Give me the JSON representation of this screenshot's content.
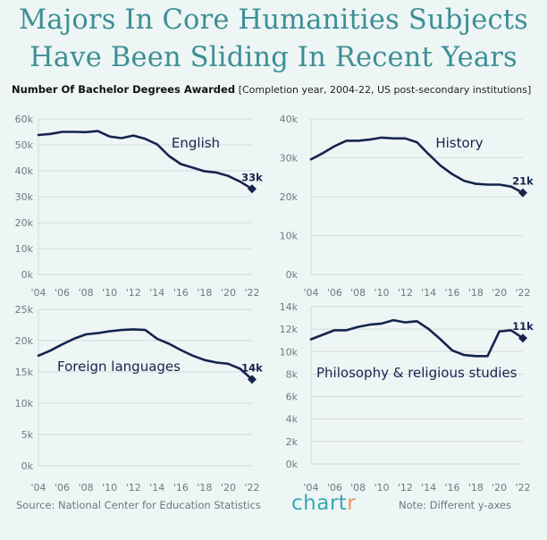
{
  "header": {
    "title_line1": "Majors In Core Humanities Subjects",
    "title_line2": "Have Been Sliding In Recent Years",
    "subtitle_bold": "Number Of Bachelor Degrees Awarded",
    "subtitle_note": "[Completion year, 2004-22, US post-secondary institutions]"
  },
  "footer": {
    "source": "Source: National Center for Education Statistics",
    "brand_main": "chart",
    "brand_accent": "r",
    "note": "Note: Different y-axes"
  },
  "colors": {
    "line": "#16244d",
    "grid": "#c9d3d4",
    "axis_text": "#6c7a7c",
    "title": "#3d8f95"
  },
  "chart_data": [
    {
      "type": "line",
      "title": "English",
      "end_label": "33k",
      "x": [
        2004,
        2005,
        2006,
        2007,
        2008,
        2009,
        2010,
        2011,
        2012,
        2013,
        2014,
        2015,
        2016,
        2017,
        2018,
        2019,
        2020,
        2021,
        2022
      ],
      "values": [
        53.8,
        54.2,
        55.0,
        55.0,
        54.9,
        55.3,
        53.2,
        52.6,
        53.6,
        52.3,
        50.2,
        45.7,
        42.6,
        41.2,
        39.8,
        39.3,
        38.0,
        35.8,
        33.0
      ],
      "ylim": [
        0,
        60
      ],
      "yticks": [
        0,
        10,
        20,
        30,
        40,
        50,
        60
      ],
      "ytick_labels": [
        "0k",
        "10k",
        "20k",
        "30k",
        "40k",
        "50k",
        "60k"
      ],
      "xtick_labels": [
        "'04",
        "'06",
        "'08",
        "'10",
        "'12",
        "'14",
        "'16",
        "'18",
        "'20",
        "'22"
      ]
    },
    {
      "type": "line",
      "title": "History",
      "end_label": "21k",
      "x": [
        2004,
        2005,
        2006,
        2007,
        2008,
        2009,
        2010,
        2011,
        2012,
        2013,
        2014,
        2015,
        2016,
        2017,
        2018,
        2019,
        2020,
        2021,
        2022
      ],
      "values": [
        29.6,
        31.2,
        33.0,
        34.4,
        34.4,
        34.7,
        35.2,
        35.0,
        35.0,
        34.0,
        30.9,
        28.0,
        25.8,
        24.1,
        23.3,
        23.1,
        23.1,
        22.6,
        21.0
      ],
      "ylim": [
        0,
        40
      ],
      "yticks": [
        0,
        10,
        20,
        30,
        40
      ],
      "ytick_labels": [
        "0k",
        "10k",
        "20k",
        "30k",
        "40k"
      ],
      "xtick_labels": [
        "'04",
        "'06",
        "'08",
        "'10",
        "'12",
        "'14",
        "'16",
        "'18",
        "'20",
        "'22"
      ]
    },
    {
      "type": "line",
      "title": "Foreign languages",
      "end_label": "14k",
      "x": [
        2004,
        2005,
        2006,
        2007,
        2008,
        2009,
        2010,
        2011,
        2012,
        2013,
        2014,
        2015,
        2016,
        2017,
        2018,
        2019,
        2020,
        2021,
        2022
      ],
      "values": [
        17.6,
        18.4,
        19.4,
        20.3,
        21.0,
        21.2,
        21.5,
        21.7,
        21.8,
        21.7,
        20.3,
        19.5,
        18.5,
        17.6,
        16.9,
        16.5,
        16.3,
        15.5,
        13.8
      ],
      "ylim": [
        0,
        25
      ],
      "yticks": [
        0,
        5,
        10,
        15,
        20,
        25
      ],
      "ytick_labels": [
        "0k",
        "5k",
        "10k",
        "15k",
        "20k",
        "25k"
      ],
      "xtick_labels": [
        "'04",
        "'06",
        "'08",
        "'10",
        "'12",
        "'14",
        "'16",
        "'18",
        "'20",
        "'22"
      ]
    },
    {
      "type": "line",
      "title": "Philosophy & religious studies",
      "end_label": "11k",
      "x": [
        2004,
        2005,
        2006,
        2007,
        2008,
        2009,
        2010,
        2011,
        2012,
        2013,
        2014,
        2015,
        2016,
        2017,
        2018,
        2019,
        2020,
        2021,
        2022
      ],
      "values": [
        11.1,
        11.5,
        11.9,
        11.9,
        12.2,
        12.4,
        12.5,
        12.8,
        12.6,
        12.7,
        12.0,
        11.1,
        10.1,
        9.7,
        9.6,
        9.6,
        11.8,
        11.9,
        11.2
      ],
      "ylim": [
        0,
        14
      ],
      "yticks": [
        0,
        2,
        4,
        6,
        8,
        10,
        12,
        14
      ],
      "ytick_labels": [
        "0k",
        "2k",
        "4k",
        "6k",
        "8k",
        "10k",
        "12k",
        "14k"
      ],
      "xtick_labels": [
        "'04",
        "'06",
        "'08",
        "'10",
        "'12",
        "'14",
        "'16",
        "'18",
        "'20",
        "'22"
      ]
    }
  ]
}
